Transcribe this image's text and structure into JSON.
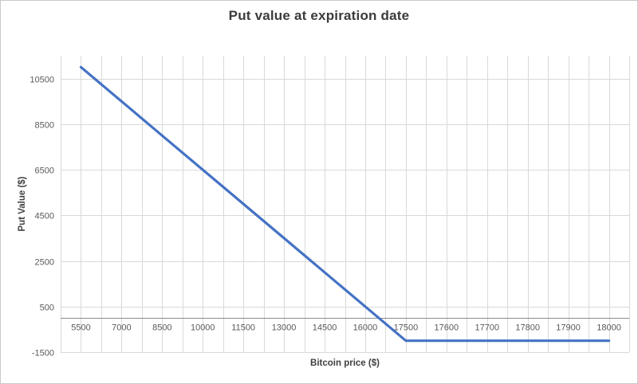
{
  "chart_data": {
    "type": "line",
    "title": "Put value at expiration date",
    "xlabel": "Bitcoin price ($)",
    "ylabel": "Put Value ($)",
    "categories": [
      "5500",
      "7000",
      "8500",
      "10000",
      "11500",
      "13000",
      "14500",
      "16000",
      "17500",
      "17600",
      "17700",
      "17800",
      "17900",
      "18000"
    ],
    "series": [
      {
        "name": "Put value",
        "values": [
          11000,
          9500,
          8000,
          6500,
          5000,
          3500,
          2000,
          500,
          -1000,
          -1000,
          -1000,
          -1000,
          -1000,
          -1000
        ]
      }
    ],
    "ylim": [
      -1500,
      11500
    ],
    "yticks": [
      -1500,
      500,
      2500,
      4500,
      6500,
      8500,
      10500
    ],
    "grid": true,
    "legend": false,
    "axis_layout": "categories-between-ticks",
    "colors": {
      "line": "#4472c4",
      "gridline": "#d9d9d9",
      "axis_line": "#8c8c8c",
      "tick_label": "#595959",
      "title": "#3b3b3b",
      "axis_title": "#404040",
      "background": "#ffffff",
      "border": "#c8c8c8"
    }
  }
}
